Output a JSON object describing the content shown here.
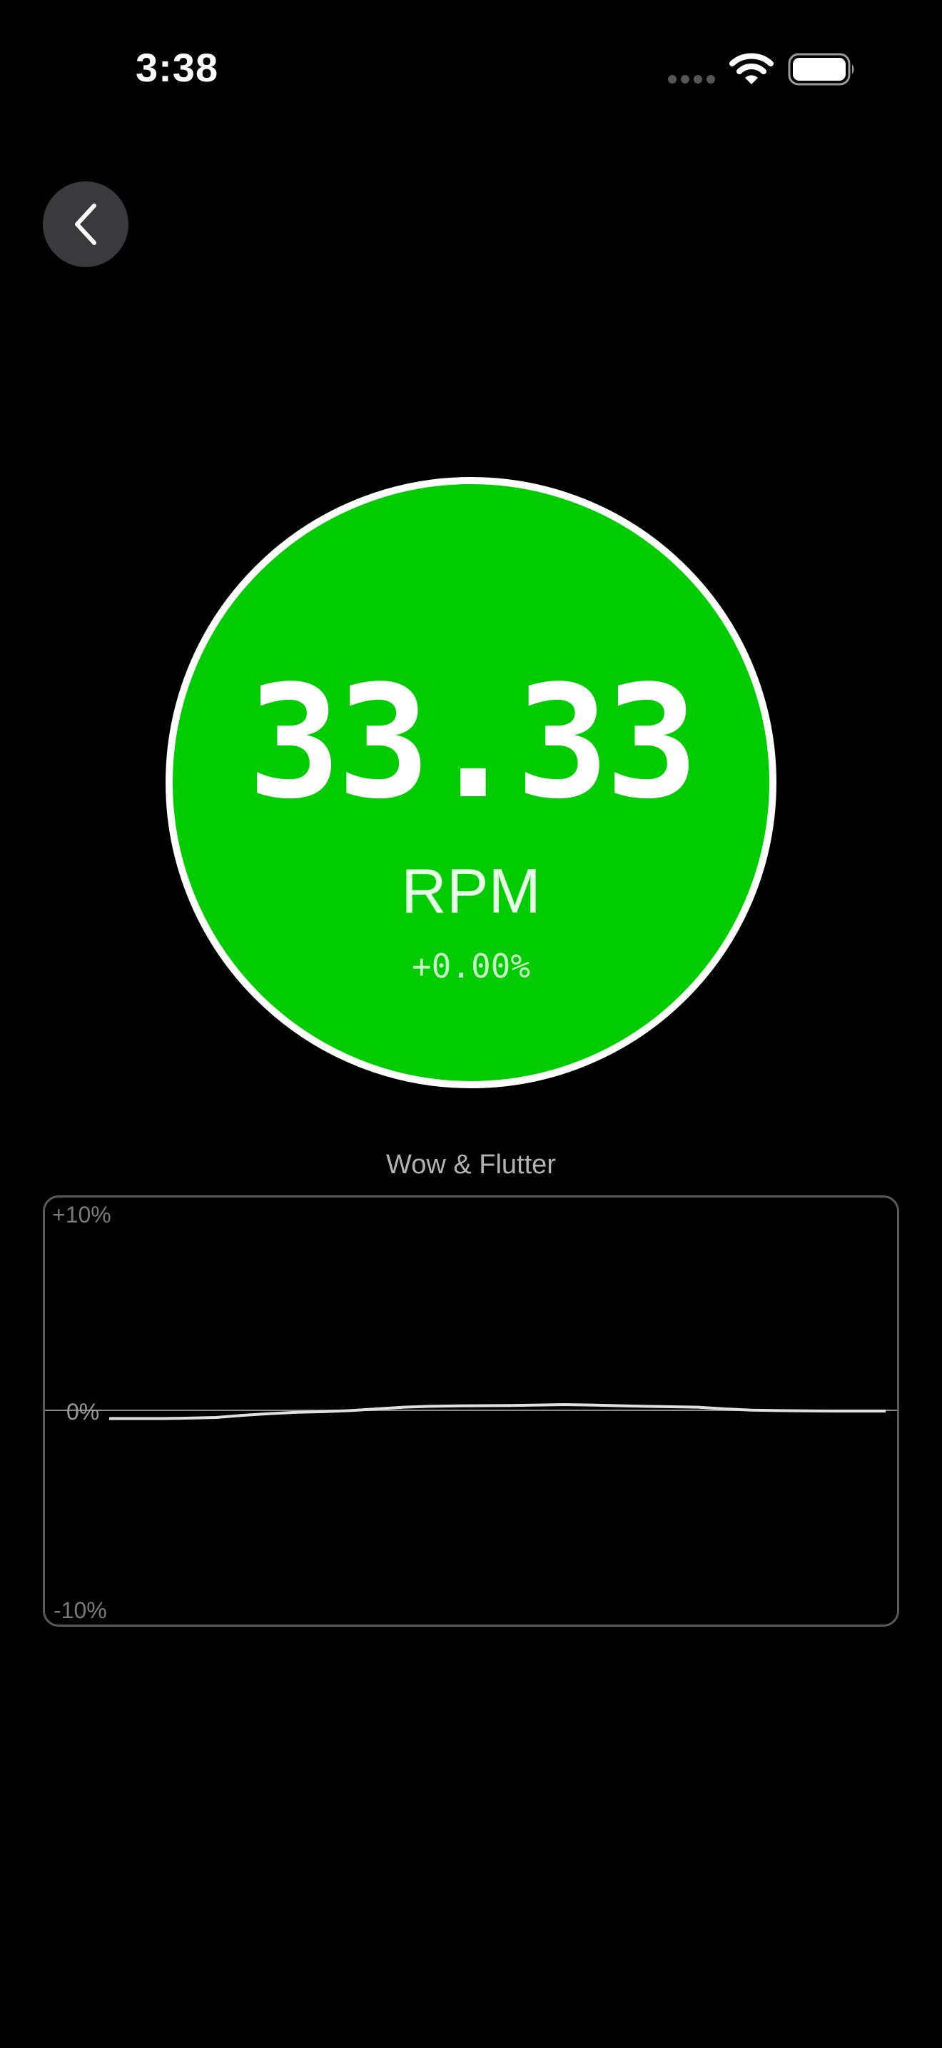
{
  "status_bar": {
    "time": "3:38"
  },
  "icons": {
    "back": "chevron-left-icon",
    "wifi": "wifi-icon",
    "battery": "battery-icon",
    "signal": "cellular-signal-icon"
  },
  "gauge": {
    "rpm_value": "33.33",
    "unit": "RPM",
    "deviation": "+0.00%",
    "fill_color": "#00cc00",
    "ring_color": "#ffffff"
  },
  "chart": {
    "title": "Wow & Flutter",
    "y_max_label": "+10%",
    "y_zero_label": "0%",
    "y_min_label": "-10%"
  },
  "chart_data": {
    "type": "line",
    "title": "Wow & Flutter",
    "xlabel": "",
    "ylabel": "",
    "ylim": [
      -10,
      10
    ],
    "yticks": [
      "+10%",
      "0%",
      "-10%"
    ],
    "grid": false,
    "series": [
      {
        "values": [
          -0.35,
          -0.35,
          -0.35,
          -0.33,
          -0.3,
          -0.2,
          -0.12,
          -0.06,
          -0.03,
          0.02,
          0.1,
          0.18,
          0.22,
          0.24,
          0.25,
          0.26,
          0.28,
          0.3,
          0.28,
          0.25,
          0.22,
          0.2,
          0.18,
          0.1,
          0.04,
          0.02,
          0.01,
          0.0,
          0.0,
          0.0
        ]
      }
    ]
  }
}
